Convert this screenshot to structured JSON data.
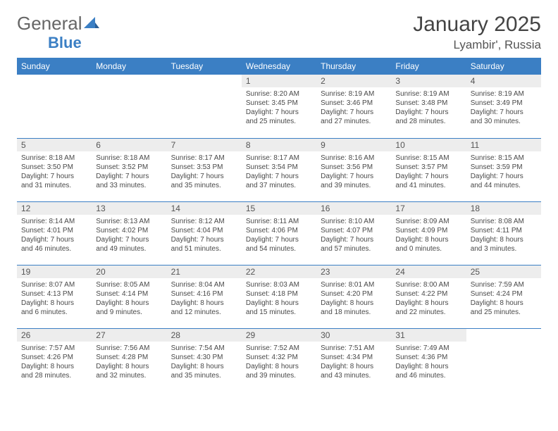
{
  "logo": {
    "general": "General",
    "blue": "Blue"
  },
  "title": "January 2025",
  "location": "Lyambir', Russia",
  "colors": {
    "header_bg": "#3b7fc4",
    "header_fg": "#ffffff",
    "daynum_bg": "#ededed",
    "text": "#494949",
    "rule": "#3b7fc4"
  },
  "day_headers": [
    "Sunday",
    "Monday",
    "Tuesday",
    "Wednesday",
    "Thursday",
    "Friday",
    "Saturday"
  ],
  "weeks": [
    [
      null,
      null,
      null,
      {
        "n": "1",
        "sr": "Sunrise: 8:20 AM",
        "ss": "Sunset: 3:45 PM",
        "d1": "Daylight: 7 hours",
        "d2": "and 25 minutes."
      },
      {
        "n": "2",
        "sr": "Sunrise: 8:19 AM",
        "ss": "Sunset: 3:46 PM",
        "d1": "Daylight: 7 hours",
        "d2": "and 27 minutes."
      },
      {
        "n": "3",
        "sr": "Sunrise: 8:19 AM",
        "ss": "Sunset: 3:48 PM",
        "d1": "Daylight: 7 hours",
        "d2": "and 28 minutes."
      },
      {
        "n": "4",
        "sr": "Sunrise: 8:19 AM",
        "ss": "Sunset: 3:49 PM",
        "d1": "Daylight: 7 hours",
        "d2": "and 30 minutes."
      }
    ],
    [
      {
        "n": "5",
        "sr": "Sunrise: 8:18 AM",
        "ss": "Sunset: 3:50 PM",
        "d1": "Daylight: 7 hours",
        "d2": "and 31 minutes."
      },
      {
        "n": "6",
        "sr": "Sunrise: 8:18 AM",
        "ss": "Sunset: 3:52 PM",
        "d1": "Daylight: 7 hours",
        "d2": "and 33 minutes."
      },
      {
        "n": "7",
        "sr": "Sunrise: 8:17 AM",
        "ss": "Sunset: 3:53 PM",
        "d1": "Daylight: 7 hours",
        "d2": "and 35 minutes."
      },
      {
        "n": "8",
        "sr": "Sunrise: 8:17 AM",
        "ss": "Sunset: 3:54 PM",
        "d1": "Daylight: 7 hours",
        "d2": "and 37 minutes."
      },
      {
        "n": "9",
        "sr": "Sunrise: 8:16 AM",
        "ss": "Sunset: 3:56 PM",
        "d1": "Daylight: 7 hours",
        "d2": "and 39 minutes."
      },
      {
        "n": "10",
        "sr": "Sunrise: 8:15 AM",
        "ss": "Sunset: 3:57 PM",
        "d1": "Daylight: 7 hours",
        "d2": "and 41 minutes."
      },
      {
        "n": "11",
        "sr": "Sunrise: 8:15 AM",
        "ss": "Sunset: 3:59 PM",
        "d1": "Daylight: 7 hours",
        "d2": "and 44 minutes."
      }
    ],
    [
      {
        "n": "12",
        "sr": "Sunrise: 8:14 AM",
        "ss": "Sunset: 4:01 PM",
        "d1": "Daylight: 7 hours",
        "d2": "and 46 minutes."
      },
      {
        "n": "13",
        "sr": "Sunrise: 8:13 AM",
        "ss": "Sunset: 4:02 PM",
        "d1": "Daylight: 7 hours",
        "d2": "and 49 minutes."
      },
      {
        "n": "14",
        "sr": "Sunrise: 8:12 AM",
        "ss": "Sunset: 4:04 PM",
        "d1": "Daylight: 7 hours",
        "d2": "and 51 minutes."
      },
      {
        "n": "15",
        "sr": "Sunrise: 8:11 AM",
        "ss": "Sunset: 4:06 PM",
        "d1": "Daylight: 7 hours",
        "d2": "and 54 minutes."
      },
      {
        "n": "16",
        "sr": "Sunrise: 8:10 AM",
        "ss": "Sunset: 4:07 PM",
        "d1": "Daylight: 7 hours",
        "d2": "and 57 minutes."
      },
      {
        "n": "17",
        "sr": "Sunrise: 8:09 AM",
        "ss": "Sunset: 4:09 PM",
        "d1": "Daylight: 8 hours",
        "d2": "and 0 minutes."
      },
      {
        "n": "18",
        "sr": "Sunrise: 8:08 AM",
        "ss": "Sunset: 4:11 PM",
        "d1": "Daylight: 8 hours",
        "d2": "and 3 minutes."
      }
    ],
    [
      {
        "n": "19",
        "sr": "Sunrise: 8:07 AM",
        "ss": "Sunset: 4:13 PM",
        "d1": "Daylight: 8 hours",
        "d2": "and 6 minutes."
      },
      {
        "n": "20",
        "sr": "Sunrise: 8:05 AM",
        "ss": "Sunset: 4:14 PM",
        "d1": "Daylight: 8 hours",
        "d2": "and 9 minutes."
      },
      {
        "n": "21",
        "sr": "Sunrise: 8:04 AM",
        "ss": "Sunset: 4:16 PM",
        "d1": "Daylight: 8 hours",
        "d2": "and 12 minutes."
      },
      {
        "n": "22",
        "sr": "Sunrise: 8:03 AM",
        "ss": "Sunset: 4:18 PM",
        "d1": "Daylight: 8 hours",
        "d2": "and 15 minutes."
      },
      {
        "n": "23",
        "sr": "Sunrise: 8:01 AM",
        "ss": "Sunset: 4:20 PM",
        "d1": "Daylight: 8 hours",
        "d2": "and 18 minutes."
      },
      {
        "n": "24",
        "sr": "Sunrise: 8:00 AM",
        "ss": "Sunset: 4:22 PM",
        "d1": "Daylight: 8 hours",
        "d2": "and 22 minutes."
      },
      {
        "n": "25",
        "sr": "Sunrise: 7:59 AM",
        "ss": "Sunset: 4:24 PM",
        "d1": "Daylight: 8 hours",
        "d2": "and 25 minutes."
      }
    ],
    [
      {
        "n": "26",
        "sr": "Sunrise: 7:57 AM",
        "ss": "Sunset: 4:26 PM",
        "d1": "Daylight: 8 hours",
        "d2": "and 28 minutes."
      },
      {
        "n": "27",
        "sr": "Sunrise: 7:56 AM",
        "ss": "Sunset: 4:28 PM",
        "d1": "Daylight: 8 hours",
        "d2": "and 32 minutes."
      },
      {
        "n": "28",
        "sr": "Sunrise: 7:54 AM",
        "ss": "Sunset: 4:30 PM",
        "d1": "Daylight: 8 hours",
        "d2": "and 35 minutes."
      },
      {
        "n": "29",
        "sr": "Sunrise: 7:52 AM",
        "ss": "Sunset: 4:32 PM",
        "d1": "Daylight: 8 hours",
        "d2": "and 39 minutes."
      },
      {
        "n": "30",
        "sr": "Sunrise: 7:51 AM",
        "ss": "Sunset: 4:34 PM",
        "d1": "Daylight: 8 hours",
        "d2": "and 43 minutes."
      },
      {
        "n": "31",
        "sr": "Sunrise: 7:49 AM",
        "ss": "Sunset: 4:36 PM",
        "d1": "Daylight: 8 hours",
        "d2": "and 46 minutes."
      },
      null
    ]
  ]
}
